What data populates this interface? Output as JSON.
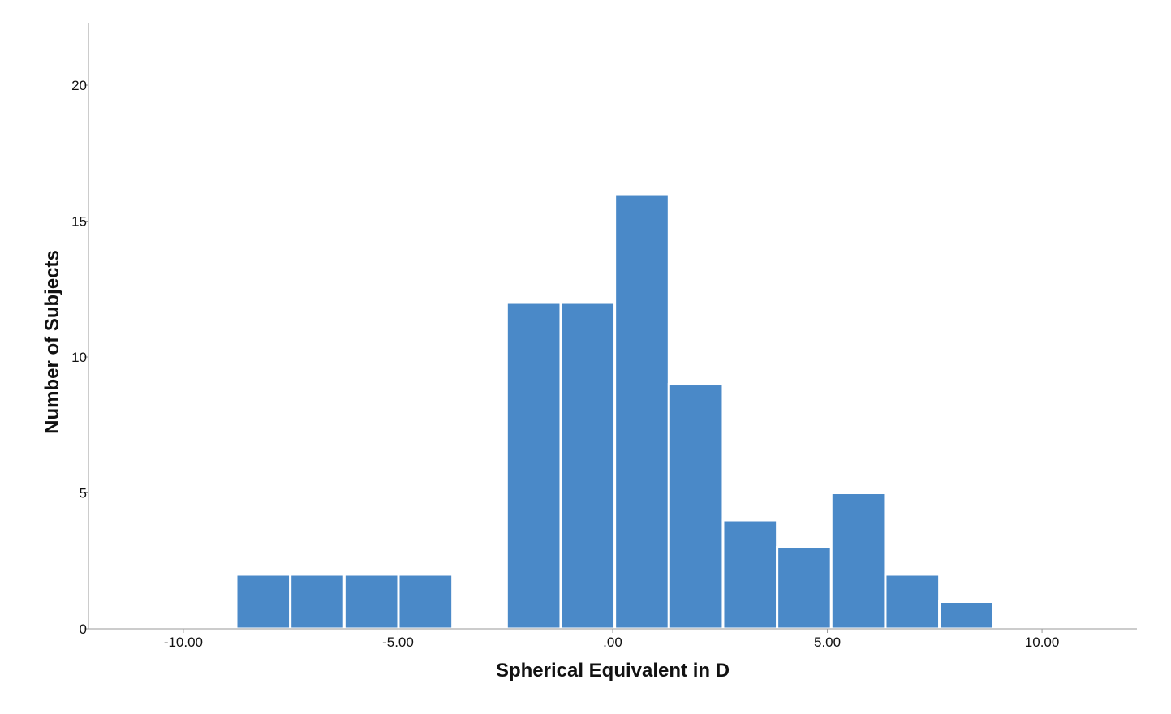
{
  "chart_data": {
    "type": "bar",
    "title": "",
    "xlabel": "Spherical Equivalent in D",
    "ylabel": "Number of Subjects",
    "bar_color": "#4a89c8",
    "background": "#ffffff",
    "grid": false,
    "xlim": [
      -12.21,
      12.21
    ],
    "ylim": [
      0,
      22.3
    ],
    "x_ticks": [
      -10,
      -5,
      0,
      5,
      10
    ],
    "x_tick_labels": [
      "-10.00",
      "-5.00",
      ".00",
      "5.00",
      "10.00"
    ],
    "y_ticks": [
      0,
      5,
      10,
      15,
      20
    ],
    "y_tick_labels": [
      "0",
      "5",
      "10",
      "15",
      "20"
    ],
    "bins": [
      {
        "x0": -8.77,
        "x1": -7.51,
        "count": 2
      },
      {
        "x0": -7.51,
        "x1": -6.25,
        "count": 2
      },
      {
        "x0": -6.25,
        "x1": -4.99,
        "count": 2
      },
      {
        "x0": -4.99,
        "x1": -3.73,
        "count": 2
      },
      {
        "x0": -3.73,
        "x1": -2.47,
        "count": 0
      },
      {
        "x0": -2.47,
        "x1": -1.21,
        "count": 12
      },
      {
        "x0": -1.21,
        "x1": 0.05,
        "count": 12
      },
      {
        "x0": 0.05,
        "x1": 1.31,
        "count": 16
      },
      {
        "x0": 1.31,
        "x1": 2.57,
        "count": 9
      },
      {
        "x0": 2.57,
        "x1": 3.83,
        "count": 4
      },
      {
        "x0": 3.83,
        "x1": 5.09,
        "count": 3
      },
      {
        "x0": 5.09,
        "x1": 6.35,
        "count": 5
      },
      {
        "x0": 6.35,
        "x1": 7.61,
        "count": 2
      },
      {
        "x0": 7.61,
        "x1": 8.87,
        "count": 1
      }
    ]
  }
}
